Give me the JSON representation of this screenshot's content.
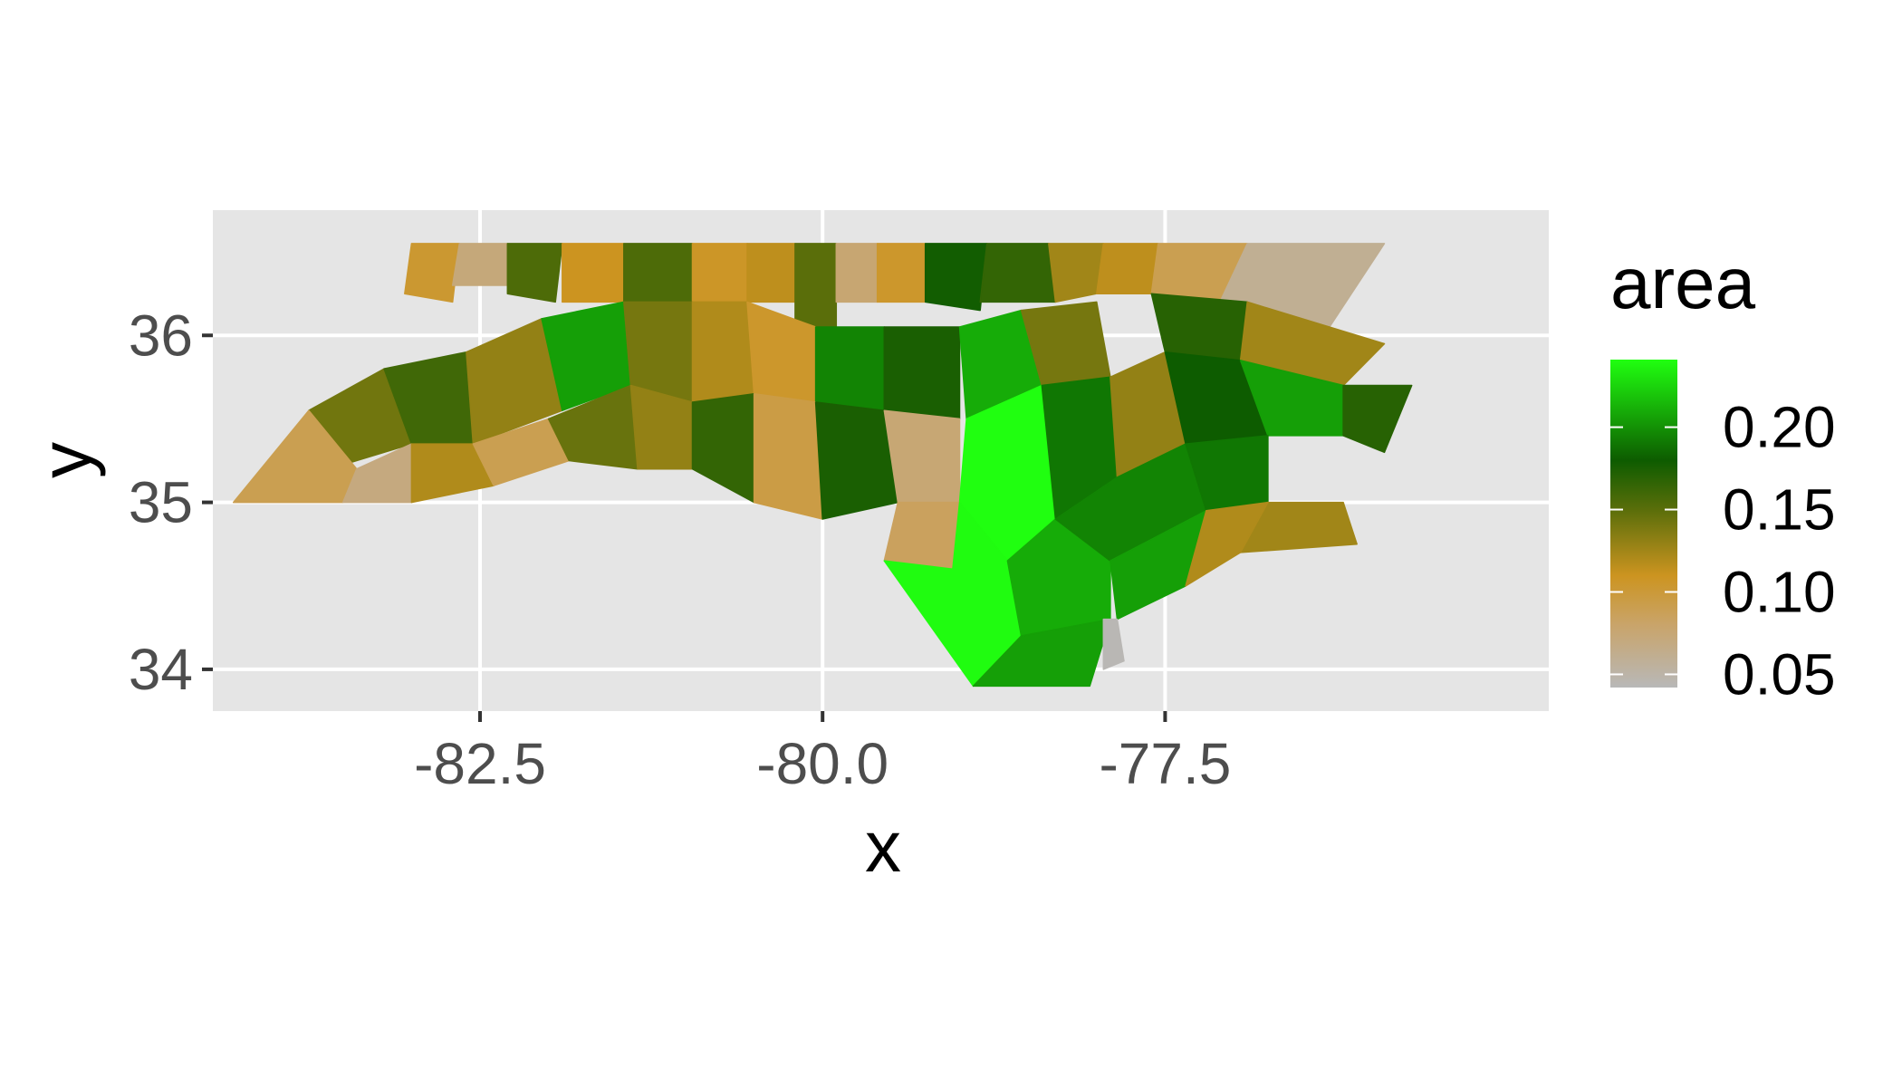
{
  "chart_data": {
    "type": "choropleth",
    "xlabel": "x",
    "ylabel": "y",
    "xlim": [
      -84.45,
      -74.7
    ],
    "ylim": [
      33.75,
      36.75
    ],
    "x_ticks": [
      -82.5,
      -80.0,
      -77.5
    ],
    "x_tick_labels": [
      "-82.5",
      "-80.0",
      "-77.5"
    ],
    "y_ticks": [
      34,
      35,
      36
    ],
    "y_tick_labels": [
      "34",
      "35",
      "36"
    ],
    "grid": true,
    "panel_background": "#e5e5e5",
    "grid_color": "#ffffff",
    "legend": {
      "title": "area",
      "position": "right",
      "range": [
        0.042,
        0.241
      ],
      "breaks": [
        0.05,
        0.1,
        0.15,
        0.2
      ],
      "labels": [
        "0.05",
        "0.10",
        "0.15",
        "0.20"
      ],
      "colors": [
        {
          "value": 0.042,
          "color": "#b8b8b8"
        },
        {
          "value": 0.08,
          "color": "#c9a46a"
        },
        {
          "value": 0.11,
          "color": "#cc9420"
        },
        {
          "value": 0.15,
          "color": "#5a6e0a"
        },
        {
          "value": 0.18,
          "color": "#0d5c00"
        },
        {
          "value": 0.241,
          "color": "#20ff10"
        }
      ]
    },
    "regions": [
      {
        "area": 0.103,
        "poly": [
          [
            -83.0,
            36.55
          ],
          [
            -82.65,
            36.55
          ],
          [
            -82.7,
            36.2
          ],
          [
            -83.05,
            36.25
          ]
        ]
      },
      {
        "area": 0.072,
        "poly": [
          [
            -82.65,
            36.55
          ],
          [
            -82.3,
            36.55
          ],
          [
            -82.3,
            36.3
          ],
          [
            -82.7,
            36.3
          ]
        ]
      },
      {
        "area": 0.155,
        "poly": [
          [
            -82.3,
            36.55
          ],
          [
            -81.9,
            36.55
          ],
          [
            -81.95,
            36.2
          ],
          [
            -82.3,
            36.25
          ]
        ]
      },
      {
        "area": 0.11,
        "poly": [
          [
            -81.9,
            36.55
          ],
          [
            -81.45,
            36.55
          ],
          [
            -81.45,
            36.2
          ],
          [
            -81.9,
            36.2
          ]
        ]
      },
      {
        "area": 0.155,
        "poly": [
          [
            -81.45,
            36.55
          ],
          [
            -80.95,
            36.55
          ],
          [
            -80.95,
            36.2
          ],
          [
            -81.45,
            36.2
          ]
        ]
      },
      {
        "area": 0.107,
        "poly": [
          [
            -80.95,
            36.55
          ],
          [
            -80.55,
            36.55
          ],
          [
            -80.55,
            36.2
          ],
          [
            -80.95,
            36.2
          ]
        ]
      },
      {
        "area": 0.115,
        "poly": [
          [
            -80.55,
            36.55
          ],
          [
            -80.2,
            36.55
          ],
          [
            -80.2,
            36.2
          ],
          [
            -80.55,
            36.2
          ]
        ]
      },
      {
        "area": 0.15,
        "poly": [
          [
            -80.2,
            36.55
          ],
          [
            -79.9,
            36.55
          ],
          [
            -79.9,
            36.0
          ],
          [
            -80.2,
            36.05
          ]
        ]
      },
      {
        "area": 0.076,
        "poly": [
          [
            -79.9,
            36.55
          ],
          [
            -79.6,
            36.55
          ],
          [
            -79.6,
            36.2
          ],
          [
            -79.9,
            36.2
          ]
        ]
      },
      {
        "area": 0.105,
        "poly": [
          [
            -79.6,
            36.55
          ],
          [
            -79.25,
            36.55
          ],
          [
            -79.25,
            36.2
          ],
          [
            -79.6,
            36.2
          ]
        ]
      },
      {
        "area": 0.178,
        "poly": [
          [
            -79.25,
            36.55
          ],
          [
            -78.8,
            36.55
          ],
          [
            -78.85,
            36.15
          ],
          [
            -79.25,
            36.2
          ]
        ]
      },
      {
        "area": 0.165,
        "poly": [
          [
            -78.8,
            36.55
          ],
          [
            -78.35,
            36.55
          ],
          [
            -78.3,
            36.2
          ],
          [
            -78.85,
            36.2
          ]
        ]
      },
      {
        "area": 0.125,
        "poly": [
          [
            -78.35,
            36.55
          ],
          [
            -77.95,
            36.55
          ],
          [
            -78.0,
            36.25
          ],
          [
            -78.3,
            36.2
          ]
        ]
      },
      {
        "area": 0.115,
        "poly": [
          [
            -77.95,
            36.55
          ],
          [
            -77.55,
            36.55
          ],
          [
            -77.6,
            36.25
          ],
          [
            -78.0,
            36.25
          ]
        ]
      },
      {
        "area": 0.09,
        "poly": [
          [
            -77.55,
            36.55
          ],
          [
            -76.9,
            36.55
          ],
          [
            -77.1,
            36.2
          ],
          [
            -77.6,
            36.25
          ]
        ]
      },
      {
        "area": 0.06,
        "poly": [
          [
            -76.9,
            36.55
          ],
          [
            -75.9,
            36.55
          ],
          [
            -76.3,
            36.05
          ],
          [
            -77.1,
            36.2
          ]
        ]
      },
      {
        "area": 0.142,
        "poly": [
          [
            -83.75,
            35.55
          ],
          [
            -83.2,
            35.8
          ],
          [
            -83.0,
            35.35
          ],
          [
            -83.6,
            35.2
          ]
        ]
      },
      {
        "area": 0.16,
        "poly": [
          [
            -83.2,
            35.8
          ],
          [
            -82.6,
            35.9
          ],
          [
            -82.55,
            35.35
          ],
          [
            -83.0,
            35.35
          ]
        ]
      },
      {
        "area": 0.13,
        "poly": [
          [
            -82.6,
            35.9
          ],
          [
            -82.05,
            36.1
          ],
          [
            -81.9,
            35.55
          ],
          [
            -82.55,
            35.35
          ]
        ]
      },
      {
        "area": 0.205,
        "poly": [
          [
            -82.05,
            36.1
          ],
          [
            -81.45,
            36.2
          ],
          [
            -81.4,
            35.7
          ],
          [
            -81.9,
            35.55
          ]
        ]
      },
      {
        "area": 0.14,
        "poly": [
          [
            -81.45,
            36.2
          ],
          [
            -80.95,
            36.2
          ],
          [
            -80.95,
            35.6
          ],
          [
            -81.4,
            35.7
          ]
        ]
      },
      {
        "area": 0.12,
        "poly": [
          [
            -80.95,
            36.2
          ],
          [
            -80.55,
            36.2
          ],
          [
            -80.5,
            35.65
          ],
          [
            -80.95,
            35.6
          ]
        ]
      },
      {
        "area": 0.105,
        "poly": [
          [
            -80.55,
            36.2
          ],
          [
            -80.05,
            36.05
          ],
          [
            -80.05,
            35.6
          ],
          [
            -80.5,
            35.65
          ]
        ]
      },
      {
        "area": 0.195,
        "poly": [
          [
            -80.05,
            36.05
          ],
          [
            -79.55,
            36.05
          ],
          [
            -79.55,
            35.55
          ],
          [
            -80.05,
            35.6
          ]
        ]
      },
      {
        "area": 0.175,
        "poly": [
          [
            -79.55,
            36.05
          ],
          [
            -79.0,
            36.05
          ],
          [
            -79.0,
            35.5
          ],
          [
            -79.55,
            35.55
          ]
        ]
      },
      {
        "area": 0.21,
        "poly": [
          [
            -79.0,
            36.05
          ],
          [
            -78.55,
            36.15
          ],
          [
            -78.4,
            35.7
          ],
          [
            -78.95,
            35.5
          ]
        ]
      },
      {
        "area": 0.14,
        "poly": [
          [
            -78.55,
            36.15
          ],
          [
            -78.0,
            36.2
          ],
          [
            -77.9,
            35.75
          ],
          [
            -78.4,
            35.7
          ]
        ]
      },
      {
        "area": 0.17,
        "poly": [
          [
            -77.6,
            36.25
          ],
          [
            -76.9,
            36.2
          ],
          [
            -76.95,
            35.85
          ],
          [
            -77.5,
            35.9
          ]
        ]
      },
      {
        "area": 0.125,
        "poly": [
          [
            -76.9,
            36.2
          ],
          [
            -75.9,
            35.95
          ],
          [
            -76.2,
            35.7
          ],
          [
            -76.95,
            35.85
          ]
        ]
      },
      {
        "area": 0.09,
        "poly": [
          [
            -84.3,
            35.0
          ],
          [
            -83.75,
            35.55
          ],
          [
            -83.4,
            35.2
          ],
          [
            -83.5,
            35.0
          ]
        ]
      },
      {
        "area": 0.07,
        "poly": [
          [
            -83.5,
            35.0
          ],
          [
            -83.4,
            35.2
          ],
          [
            -83.0,
            35.35
          ],
          [
            -83.0,
            35.0
          ]
        ]
      },
      {
        "area": 0.12,
        "poly": [
          [
            -83.0,
            35.0
          ],
          [
            -83.0,
            35.35
          ],
          [
            -82.55,
            35.35
          ],
          [
            -82.4,
            35.1
          ]
        ]
      },
      {
        "area": 0.09,
        "poly": [
          [
            -82.4,
            35.1
          ],
          [
            -82.55,
            35.35
          ],
          [
            -82.0,
            35.5
          ],
          [
            -81.85,
            35.25
          ]
        ]
      },
      {
        "area": 0.145,
        "poly": [
          [
            -81.85,
            35.25
          ],
          [
            -82.0,
            35.5
          ],
          [
            -81.4,
            35.7
          ],
          [
            -81.35,
            35.2
          ]
        ]
      },
      {
        "area": 0.13,
        "poly": [
          [
            -81.35,
            35.2
          ],
          [
            -81.4,
            35.7
          ],
          [
            -80.95,
            35.6
          ],
          [
            -80.95,
            35.2
          ]
        ]
      },
      {
        "area": 0.165,
        "poly": [
          [
            -80.95,
            35.2
          ],
          [
            -80.95,
            35.6
          ],
          [
            -80.5,
            35.65
          ],
          [
            -80.5,
            35.0
          ]
        ]
      },
      {
        "area": 0.095,
        "poly": [
          [
            -80.5,
            35.0
          ],
          [
            -80.5,
            35.65
          ],
          [
            -80.05,
            35.6
          ],
          [
            -80.0,
            34.9
          ]
        ]
      },
      {
        "area": 0.175,
        "poly": [
          [
            -80.0,
            34.9
          ],
          [
            -80.05,
            35.6
          ],
          [
            -79.55,
            35.55
          ],
          [
            -79.45,
            35.0
          ]
        ]
      },
      {
        "area": 0.075,
        "poly": [
          [
            -79.45,
            35.0
          ],
          [
            -79.55,
            35.55
          ],
          [
            -79.0,
            35.5
          ],
          [
            -79.0,
            35.0
          ]
        ]
      },
      {
        "area": 0.241,
        "poly": [
          [
            -79.0,
            35.0
          ],
          [
            -78.95,
            35.5
          ],
          [
            -78.4,
            35.7
          ],
          [
            -78.3,
            34.9
          ],
          [
            -78.65,
            34.65
          ]
        ]
      },
      {
        "area": 0.19,
        "poly": [
          [
            -78.4,
            35.7
          ],
          [
            -77.9,
            35.75
          ],
          [
            -77.85,
            35.15
          ],
          [
            -78.3,
            34.9
          ]
        ]
      },
      {
        "area": 0.13,
        "poly": [
          [
            -77.9,
            35.75
          ],
          [
            -77.5,
            35.9
          ],
          [
            -77.35,
            35.35
          ],
          [
            -77.85,
            35.15
          ]
        ]
      },
      {
        "area": 0.18,
        "poly": [
          [
            -77.5,
            35.9
          ],
          [
            -76.95,
            35.85
          ],
          [
            -76.75,
            35.4
          ],
          [
            -77.35,
            35.35
          ]
        ]
      },
      {
        "area": 0.205,
        "poly": [
          [
            -76.95,
            35.85
          ],
          [
            -76.2,
            35.7
          ],
          [
            -76.2,
            35.4
          ],
          [
            -76.75,
            35.4
          ]
        ]
      },
      {
        "area": 0.17,
        "poly": [
          [
            -76.2,
            35.7
          ],
          [
            -75.7,
            35.7
          ],
          [
            -75.9,
            35.3
          ],
          [
            -76.2,
            35.4
          ]
        ]
      },
      {
        "area": 0.085,
        "poly": [
          [
            -79.45,
            35.0
          ],
          [
            -79.0,
            35.0
          ],
          [
            -79.05,
            34.6
          ],
          [
            -79.55,
            34.65
          ]
        ]
      },
      {
        "area": 0.24,
        "poly": [
          [
            -79.55,
            34.65
          ],
          [
            -79.05,
            34.6
          ],
          [
            -79.0,
            35.0
          ],
          [
            -78.65,
            34.65
          ],
          [
            -78.55,
            34.2
          ],
          [
            -78.9,
            33.9
          ]
        ]
      },
      {
        "area": 0.21,
        "poly": [
          [
            -78.65,
            34.65
          ],
          [
            -78.3,
            34.9
          ],
          [
            -77.9,
            34.65
          ],
          [
            -77.9,
            34.3
          ],
          [
            -78.55,
            34.2
          ]
        ]
      },
      {
        "area": 0.205,
        "poly": [
          [
            -78.9,
            33.9
          ],
          [
            -78.55,
            34.2
          ],
          [
            -77.9,
            34.3
          ],
          [
            -78.05,
            33.9
          ]
        ]
      },
      {
        "area": 0.195,
        "poly": [
          [
            -78.3,
            34.9
          ],
          [
            -77.85,
            35.15
          ],
          [
            -77.35,
            35.35
          ],
          [
            -77.2,
            34.95
          ],
          [
            -77.9,
            34.65
          ]
        ]
      },
      {
        "area": 0.205,
        "poly": [
          [
            -77.9,
            34.65
          ],
          [
            -77.2,
            34.95
          ],
          [
            -77.35,
            34.5
          ],
          [
            -77.85,
            34.3
          ]
        ]
      },
      {
        "area": 0.044,
        "poly": [
          [
            -77.95,
            34.3
          ],
          [
            -77.85,
            34.3
          ],
          [
            -77.8,
            34.05
          ],
          [
            -77.95,
            34.0
          ]
        ]
      },
      {
        "area": 0.19,
        "poly": [
          [
            -77.35,
            35.35
          ],
          [
            -76.75,
            35.4
          ],
          [
            -76.75,
            35.0
          ],
          [
            -77.2,
            34.95
          ]
        ]
      },
      {
        "area": 0.125,
        "poly": [
          [
            -76.75,
            35.0
          ],
          [
            -76.2,
            35.0
          ],
          [
            -76.1,
            34.75
          ],
          [
            -76.95,
            34.7
          ]
        ]
      },
      {
        "area": 0.12,
        "poly": [
          [
            -77.2,
            34.95
          ],
          [
            -76.75,
            35.0
          ],
          [
            -76.95,
            34.7
          ],
          [
            -77.35,
            34.5
          ]
        ]
      }
    ]
  }
}
